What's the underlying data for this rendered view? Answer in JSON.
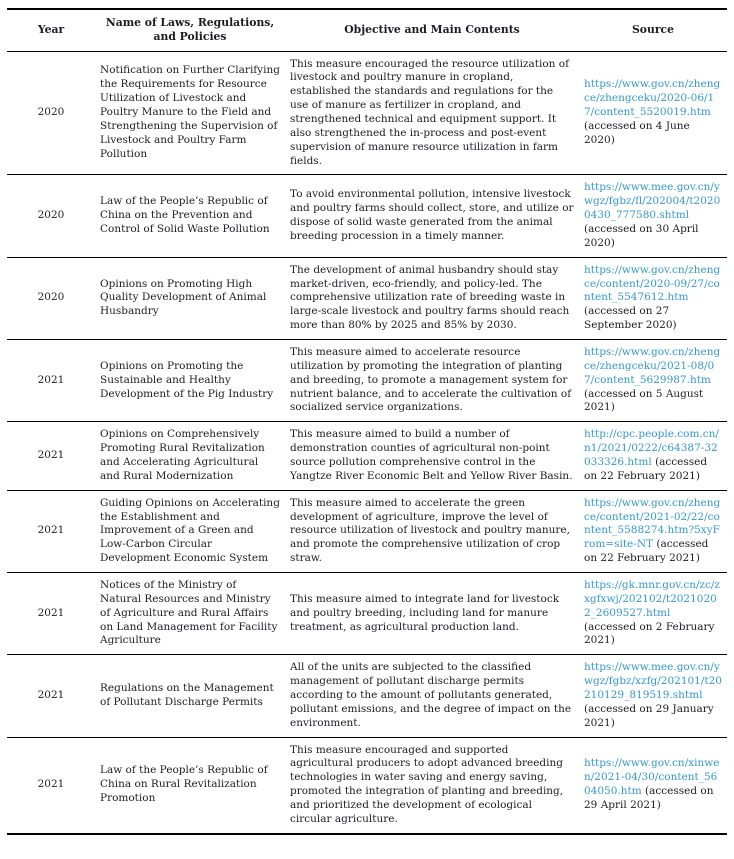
{
  "colors": {
    "link": "#3398cc",
    "text": "#1c1c24"
  },
  "table": {
    "headers": [
      "Year",
      "Name of Laws, Regulations, and Policies",
      "Objective and Main Contents",
      "Source"
    ],
    "rows": [
      {
        "year": "2020",
        "name": "Notification on Further Clarifying the Requirements for Resource Utilization of Livestock and Poultry Manure to the Field and Strengthening the Supervision of Livestock and Poultry Farm Pollution",
        "objective": "This measure encouraged the resource utilization of livestock and poultry manure in cropland, established the standards and regulations for the use of manure as fertilizer in cropland, and strengthened technical and equipment support. It also strengthened the in-process and post-event supervision of manure resource utilization in farm fields.",
        "source_link": "https://www.gov.cn/zhengce/zhengceku/2020-06/17/content_5520019.htm",
        "source_accessed": "(accessed on 4 June 2020)"
      },
      {
        "year": "2020",
        "name": "Law of the People’s Republic of China on the Prevention and Control of Solid Waste Pollution",
        "objective": "To avoid environmental pollution, intensive livestock and poultry farms should collect, store, and utilize or dispose of solid waste generated from the animal breeding procession in a timely manner.",
        "source_link": "https://www.mee.gov.cn/ywgz/fgbz/fl/202004/t20200430_777580.shtml",
        "source_accessed": "(accessed on 30 April 2020)"
      },
      {
        "year": "2020",
        "name": "Opinions on Promoting High Quality Development of Animal Husbandry",
        "objective": "The development of animal husbandry should stay market-driven, eco-friendly, and policy-led. The comprehensive utilization rate of breeding waste in large-scale livestock and poultry farms should reach more than 80% by 2025 and 85% by 2030.",
        "source_link": "https://www.gov.cn/zhengce/content/2020-09/27/content_5547612.htm",
        "source_accessed": "(accessed on 27 September 2020)"
      },
      {
        "year": "2021",
        "name": "Opinions on Promoting the Sustainable and Healthy Development of the Pig Industry",
        "objective": "This measure aimed to accelerate resource utilization by promoting the integration of planting and breeding, to promote a management system for nutrient balance, and to accelerate the cultivation of socialized service organizations.",
        "source_link": "https://www.gov.cn/zhengce/zhengceku/2021-08/07/content_5629987.htm",
        "source_accessed": "(accessed on 5 August 2021)"
      },
      {
        "year": "2021",
        "name": "Opinions on Comprehensively Promoting Rural Revitalization and Accelerating Agricultural and Rural Modernization",
        "objective": "This measure aimed to build a number of demonstration counties of agricultural non-point source pollution comprehensive control in the Yangtze River Economic Belt and Yellow River Basin.",
        "source_link": "http://cpc.people.com.cn/n1/2021/0222/c64387-32033326.html",
        "source_accessed": "(accessed on 22 February 2021)"
      },
      {
        "year": "2021",
        "name": "Guiding Opinions on Accelerating the Establishment and Improvement of a Green and Low-Carbon Circular Development Economic System",
        "objective": "This measure aimed to accelerate the green development of agriculture, improve the level of resource utilization of livestock and poultry manure, and promote the comprehensive utilization of crop straw.",
        "source_link": "https://www.gov.cn/zhengce/content/2021-02/22/content_5588274.htm?5xyFrom=site-NT",
        "source_accessed": "(accessed on 22 February 2021)"
      },
      {
        "year": "2021",
        "name": "Notices of the Ministry of Natural Resources and Ministry of Agriculture and Rural Affairs on Land Management for Facility Agriculture",
        "objective": "This measure aimed to integrate land for livestock and poultry breeding, including land for manure treatment, as agricultural production land.",
        "source_link": "https://gk.mnr.gov.cn/zc/zxgfxwj/202102/t20210202_2609527.html",
        "source_accessed": "(accessed on 2 February 2021)"
      },
      {
        "year": "2021",
        "name": "Regulations on the Management of Pollutant Discharge Permits",
        "objective": "All of the units are subjected to the classified management of pollutant discharge permits according to the amount of pollutants generated, pollutant emissions, and the degree of impact on the environment.",
        "source_link": "https://www.mee.gov.cn/ywgz/fgbz/xzfg/202101/t20210129_819519.shtml",
        "source_accessed": "(accessed on 29 January 2021)"
      },
      {
        "year": "2021",
        "name": "Law of the People’s Republic of China on Rural Revitalization Promotion",
        "objective": "This measure encouraged and supported agricultural producers to adopt advanced breeding technologies in water saving and energy saving, promoted the integration of planting and breeding, and prioritized the development of ecological circular agriculture.",
        "source_link": "https://www.gov.cn/xinwen/2021-04/30/content_5604050.htm",
        "source_accessed": "(accessed on 29 April 2021)"
      }
    ]
  }
}
